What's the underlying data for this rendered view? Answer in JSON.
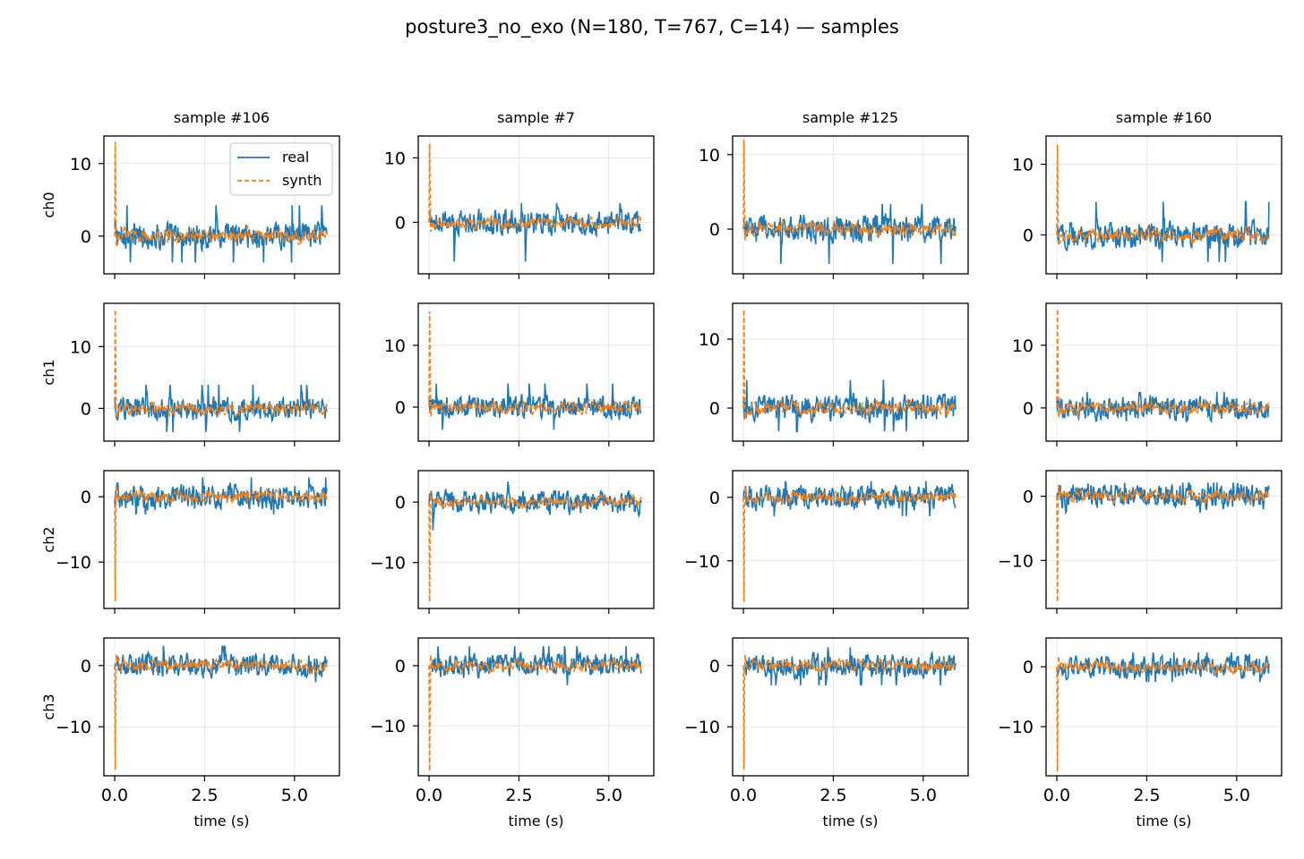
{
  "figure": {
    "suptitle": "posture3_no_exo (N=180, T=767, C=14) — samples",
    "colors": {
      "real": "#1f77b4",
      "synth": "#ff7f0e",
      "grid": "#e6e6e6",
      "frame": "#000000"
    }
  },
  "chart_data": {
    "type": "line",
    "xlabel": "time (s)",
    "xlim": [
      -0.3,
      6.25
    ],
    "xticks": [
      0.0,
      2.5,
      5.0
    ],
    "xtick_labels": [
      "0.0",
      "2.5",
      "5.0"
    ],
    "legend": {
      "placement": "top-right",
      "panel": "ch0 / sample #106",
      "entries": [
        "real",
        "synth"
      ]
    },
    "samples": [
      "sample #106",
      "sample #7",
      "sample #125",
      "sample #160"
    ],
    "channels": [
      {
        "label": "ch0",
        "panels": [
          {
            "ylim": [
              -5.2,
              13.8
            ],
            "yticks": [
              0,
              10
            ],
            "ytick_labels": [
              "0",
              "10"
            ],
            "real_peak": 5.0,
            "real_min": -4.3,
            "synth_peak": 13.0,
            "synth_min": -2.8
          },
          {
            "ylim": [
              -8.0,
              13.4
            ],
            "yticks": [
              0,
              10
            ],
            "ytick_labels": [
              "0",
              "10"
            ],
            "real_peak": 3.5,
            "real_min": -7.2,
            "synth_peak": 12.2,
            "synth_min": -2.0
          },
          {
            "ylim": [
              -6.0,
              12.5
            ],
            "yticks": [
              0,
              10
            ],
            "ytick_labels": [
              "0",
              "10"
            ],
            "real_peak": 4.0,
            "real_min": -5.5,
            "synth_peak": 12.0,
            "synth_min": -3.5
          },
          {
            "ylim": [
              -5.5,
              14.0
            ],
            "yticks": [
              0,
              10
            ],
            "ytick_labels": [
              "0",
              "10"
            ],
            "real_peak": 5.5,
            "real_min": -4.5,
            "synth_peak": 12.8,
            "synth_min": -3.5
          }
        ]
      },
      {
        "label": "ch1",
        "panels": [
          {
            "ylim": [
              -5.3,
              17.0
            ],
            "yticks": [
              0,
              10
            ],
            "ytick_labels": [
              "0",
              "10"
            ],
            "real_peak": 4.5,
            "real_min": -4.5,
            "synth_peak": 16.0,
            "synth_min": -2.8
          },
          {
            "ylim": [
              -5.5,
              16.8
            ],
            "yticks": [
              0,
              10
            ],
            "ytick_labels": [
              "0",
              "10"
            ],
            "real_peak": 4.5,
            "real_min": -4.3,
            "synth_peak": 15.5,
            "synth_min": -3.0
          },
          {
            "ylim": [
              -4.8,
              15.2
            ],
            "yticks": [
              0,
              10
            ],
            "ytick_labels": [
              "0",
              "10"
            ],
            "real_peak": 4.8,
            "real_min": -4.0,
            "synth_peak": 14.3,
            "synth_min": -3.8
          },
          {
            "ylim": [
              -5.3,
              16.7
            ],
            "yticks": [
              0,
              10
            ],
            "ytick_labels": [
              "0",
              "10"
            ],
            "real_peak": 3.0,
            "real_min": -2.5,
            "synth_peak": 15.8,
            "synth_min": -3.0
          }
        ]
      },
      {
        "label": "ch2",
        "panels": [
          {
            "ylim": [
              -17.1,
              4.0
            ],
            "yticks": [
              -10,
              0
            ],
            "ytick_labels": [
              "−10",
              "0"
            ],
            "real_peak": 3.5,
            "real_min": -3.2,
            "synth_peak": 2.5,
            "synth_min": -16.0
          },
          {
            "ylim": [
              -17.6,
              5.2
            ],
            "yticks": [
              -10,
              0
            ],
            "ytick_labels": [
              "−10",
              "0"
            ],
            "real_peak": 4.0,
            "real_min": -5.5,
            "synth_peak": 2.5,
            "synth_min": -16.5
          },
          {
            "ylim": [
              -17.5,
              4.2
            ],
            "yticks": [
              -10,
              0
            ],
            "ytick_labels": [
              "−10",
              "0"
            ],
            "real_peak": 3.0,
            "real_min": -3.5,
            "synth_peak": 2.0,
            "synth_min": -16.5
          },
          {
            "ylim": [
              -17.5,
              4.0
            ],
            "yticks": [
              -10,
              0
            ],
            "ytick_labels": [
              "−10",
              "0"
            ],
            "real_peak": 2.5,
            "real_min": -3.0,
            "synth_peak": 2.5,
            "synth_min": -16.5
          }
        ]
      },
      {
        "label": "ch3",
        "panels": [
          {
            "ylim": [
              -18.0,
              4.5
            ],
            "yticks": [
              -10,
              0
            ],
            "ytick_labels": [
              "−10",
              "0"
            ],
            "real_peak": 3.8,
            "real_min": -3.2,
            "synth_peak": 2.6,
            "synth_min": -17.0
          },
          {
            "ylim": [
              -18.3,
              4.6
            ],
            "yticks": [
              -10,
              0
            ],
            "ytick_labels": [
              "−10",
              "0"
            ],
            "real_peak": 3.8,
            "real_min": -3.8,
            "synth_peak": 2.8,
            "synth_min": -17.5
          },
          {
            "ylim": [
              -18.0,
              4.5
            ],
            "yticks": [
              -10,
              0
            ],
            "ytick_labels": [
              "−10",
              "0"
            ],
            "real_peak": 3.5,
            "real_min": -3.8,
            "synth_peak": 3.8,
            "synth_min": -17.0
          },
          {
            "ylim": [
              -18.2,
              4.8
            ],
            "yticks": [
              -10,
              0
            ],
            "ytick_labels": [
              "−10",
              "0"
            ],
            "real_peak": 2.8,
            "real_min": -3.0,
            "synth_peak": 2.8,
            "synth_min": -17.5
          }
        ]
      }
    ],
    "series": [
      {
        "name": "real",
        "style": "solid",
        "x_range": [
          0.0,
          5.9
        ],
        "points": 767
      },
      {
        "name": "synth",
        "style": "dashed",
        "x_range": [
          0.0,
          5.9
        ],
        "points": 767
      }
    ]
  }
}
